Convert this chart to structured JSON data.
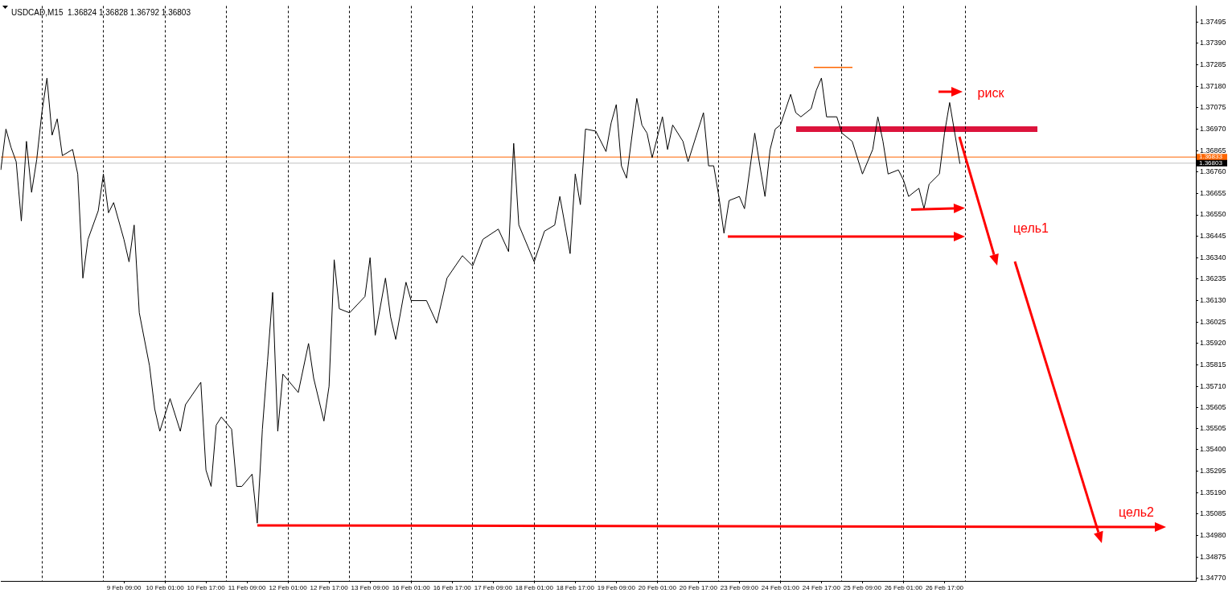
{
  "chart_data": {
    "type": "line",
    "title": "USDCAD,M15  1.36824 1.36828 1.36792 1.36803",
    "categories": [
      null,
      null,
      null,
      null,
      null,
      null,
      null,
      null,
      null,
      null,
      null,
      null,
      null,
      null,
      null,
      null,
      null,
      null,
      null,
      null,
      null,
      null,
      null,
      null,
      "9 Feb 09:00",
      null,
      null,
      null,
      null,
      null,
      null,
      null,
      "10 Feb 01:00",
      null,
      null,
      null,
      null,
      null,
      null,
      null,
      "10 Feb 17:00",
      null,
      null,
      null,
      null,
      null,
      null,
      null,
      "11 Feb 09:00",
      null,
      null,
      null,
      null,
      null,
      null,
      null,
      "12 Feb 01:00",
      null,
      null,
      null,
      null,
      null,
      null,
      null,
      "12 Feb 17:00",
      null,
      null,
      null,
      null,
      null,
      null,
      null,
      "13 Feb 09:00",
      null,
      null,
      null,
      null,
      null,
      null,
      null,
      "16 Feb 01:00",
      null,
      null,
      null,
      null,
      null,
      null,
      null,
      "16 Feb 17:00",
      null,
      null,
      null,
      null,
      null,
      null,
      null,
      "17 Feb 09:00",
      null,
      null,
      null,
      null,
      null,
      null,
      null,
      "18 Feb 01:00",
      null,
      null,
      null,
      null,
      null,
      null,
      null,
      "18 Feb 17:00",
      null,
      null,
      null,
      null,
      null,
      null,
      null,
      "19 Feb 09:00",
      null,
      null,
      null,
      null,
      null,
      null,
      null,
      "20 Feb 01:00",
      null,
      null,
      null,
      null,
      null,
      null,
      null,
      "20 Feb 17:00",
      null,
      null,
      null,
      null,
      null,
      null,
      null,
      "23 Feb 09:00",
      null,
      null,
      null,
      null,
      null,
      null,
      null,
      "24 Feb 01:00",
      null,
      null,
      null,
      null,
      null,
      null,
      null,
      "24 Feb 17:00",
      null,
      null,
      null,
      null,
      null,
      null,
      null,
      "25 Feb 09:00",
      null,
      null,
      null,
      null,
      null,
      null,
      null,
      "26 Feb 01:00",
      null,
      null,
      null,
      null,
      null,
      null,
      null,
      "26 Feb 17:00",
      null,
      null,
      null,
      null,
      null,
      null,
      null,
      null,
      null,
      null,
      null,
      null,
      null,
      null,
      null,
      null,
      null,
      null,
      null,
      null,
      null,
      null,
      null,
      null,
      null,
      null,
      null,
      null,
      null,
      null,
      null,
      null,
      null,
      null,
      null,
      null,
      null,
      null,
      null,
      null,
      null,
      null,
      null,
      null,
      null,
      null,
      null,
      null,
      null
    ],
    "ylim": [
      1.34757,
      1.37573
    ],
    "yticks": [
      1.37495,
      {
        "value": 1.3739,
        "label": "1.37390"
      },
      1.37285,
      {
        "value": 1.3718,
        "label": "1.37180"
      },
      1.37075,
      {
        "value": 1.3697,
        "label": "1.36970"
      },
      1.36865,
      {
        "value": 1.3676,
        "label": "1.36760"
      },
      1.36655,
      {
        "value": 1.3655,
        "label": "1.36550"
      },
      1.36445,
      {
        "value": 1.3634,
        "label": "1.36340"
      },
      1.36235,
      {
        "value": 1.3613,
        "label": "1.36130"
      },
      1.36025,
      {
        "value": 1.3592,
        "label": "1.35920"
      },
      1.35815,
      {
        "value": 1.3571,
        "label": "1.35710"
      },
      1.35605,
      1.35505,
      {
        "value": 1.354,
        "label": "1.35400"
      },
      1.35295,
      {
        "value": 1.3519,
        "label": "1.35190"
      },
      1.35085,
      {
        "value": 1.3498,
        "label": "1.34980"
      },
      1.34875,
      {
        "value": 1.3477,
        "label": "1.34770"
      }
    ],
    "grid": "x",
    "legend": false,
    "marker": "none",
    "ref_lines": [
      {
        "axis": "y",
        "value": 1.36833,
        "label": "1.36833",
        "color": "#ff6600"
      },
      {
        "axis": "y",
        "value": 1.36803,
        "label": "1.36803",
        "color": "#c0c0c0"
      }
    ],
    "annotations": [
      "риск",
      "цель1",
      "цель2"
    ],
    "series": [
      {
        "color": "#000000",
        "values": [
          1.3677,
          1.3697,
          1.3688,
          1.3681,
          1.3652,
          1.3691,
          1.3666,
          1.3682,
          1.3705,
          1.3722,
          1.3694,
          1.3702,
          1.3684,
          null,
          1.3687,
          1.3675,
          1.3624,
          1.3643,
          null,
          1.3657,
          1.3675,
          1.3656,
          1.3661,
          null,
          1.3643,
          1.3632,
          1.365,
          1.3607,
          null,
          1.3581,
          1.356,
          1.3549,
          null,
          1.3565,
          null,
          1.3549,
          1.3562,
          null,
          null,
          1.3573,
          1.353,
          1.3522,
          1.3552,
          1.3556,
          null,
          1.355,
          1.3522,
          1.3522,
          null,
          1.3528,
          1.3504,
          1.355,
          1.3583,
          1.3617,
          1.3549,
          1.3577,
          null,
          null,
          1.3568,
          null,
          1.3592,
          1.3575,
          null,
          1.3554,
          1.3571,
          1.3633,
          1.3609,
          null,
          1.3607,
          null,
          null,
          1.3615,
          1.3634,
          1.3596,
          null,
          1.3624,
          1.3605,
          1.3594,
          null,
          1.3622,
          1.3613,
          null,
          null,
          1.3613,
          null,
          1.3602,
          null,
          1.3624,
          null,
          null,
          1.3635,
          null,
          1.363,
          null,
          1.3643,
          null,
          null,
          1.3648,
          null,
          1.3637,
          1.369,
          1.365,
          null,
          null,
          1.3632,
          null,
          1.3647,
          null,
          1.365,
          1.3664,
          null,
          1.3636,
          1.3675,
          1.366,
          1.3697,
          null,
          1.3696,
          null,
          1.3686,
          1.37,
          1.3709,
          1.3679,
          1.3673,
          null,
          1.3712,
          1.3699,
          1.3695,
          1.3683,
          null,
          1.3703,
          1.3687,
          1.3699,
          null,
          1.3691,
          1.3681,
          null,
          null,
          1.3705,
          1.3679,
          1.3679,
          1.3664,
          1.3646,
          1.3662,
          null,
          1.3664,
          1.3658,
          null,
          1.3695,
          1.3679,
          1.3664,
          1.3687,
          1.3697,
          1.3699,
          null,
          1.3714,
          1.3705,
          1.3703,
          null,
          1.3707,
          1.3716,
          1.3722,
          1.3703,
          null,
          1.3703,
          1.3695,
          null,
          1.3691,
          1.3683,
          1.3675,
          null,
          1.3687,
          1.3703,
          1.3691,
          1.3675,
          null,
          1.3677,
          1.3672,
          1.3664,
          null,
          1.3668,
          1.3658,
          1.367,
          null,
          1.3675,
          1.3695,
          1.371,
          null,
          1.368,
          null,
          null,
          null,
          null,
          null,
          null,
          null,
          null,
          null,
          null,
          null,
          null,
          null,
          null,
          null,
          null,
          null,
          null,
          null,
          null,
          null,
          null,
          null,
          null,
          null,
          null,
          null,
          null,
          null,
          null,
          null,
          null,
          null,
          null,
          null,
          null,
          null,
          null,
          null,
          null,
          null,
          null,
          null,
          null,
          null,
          null
        ]
      }
    ]
  }
}
